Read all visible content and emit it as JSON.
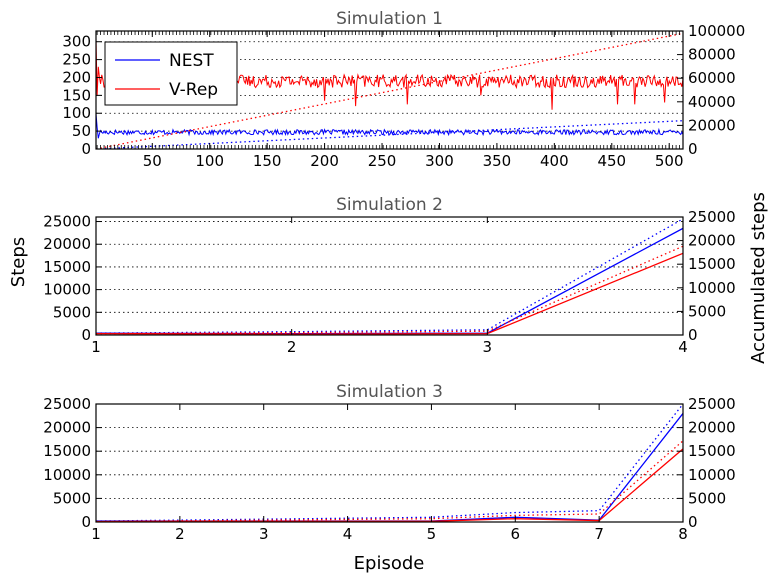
{
  "figure": {
    "ylabel_left": "Steps",
    "ylabel_right": "Accumulated steps",
    "xlabel_bottom": "Episode"
  },
  "colors": {
    "nest": "#0000ff",
    "vrep": "#ff0000"
  },
  "chart_data": [
    {
      "type": "line",
      "title": "Simulation 1",
      "xlim": [
        1,
        512
      ],
      "ylim": [
        0,
        330
      ],
      "ylim_right": [
        0,
        100000
      ],
      "x_ticks": [
        50,
        100,
        150,
        200,
        250,
        300,
        350,
        400,
        450,
        500
      ],
      "y_ticks": [
        0,
        50,
        100,
        150,
        200,
        250,
        300
      ],
      "y_ticks_right": [
        0,
        20000,
        40000,
        60000,
        80000,
        100000
      ],
      "legend": {
        "position": "top-left",
        "entries": [
          "NEST",
          "V-Rep"
        ]
      },
      "series": [
        {
          "name": "NEST",
          "color": "#0000ff",
          "style": "noisy",
          "axis": "left",
          "base": 47,
          "noise": 7,
          "start": [
            100,
            60,
            30
          ]
        },
        {
          "name": "V-Rep",
          "color": "#ff0000",
          "style": "noisy",
          "axis": "left",
          "base": 190,
          "noise": 18,
          "start": [
            310,
            150,
            230,
            200
          ],
          "dips": [
            [
              200,
              135
            ],
            [
              227,
              120
            ],
            [
              272,
              125
            ],
            [
              336,
              150
            ],
            [
              398,
              110
            ],
            [
              455,
              125
            ],
            [
              470,
              125
            ],
            [
              496,
              130
            ]
          ]
        },
        {
          "name": "NEST",
          "color": "#0000ff",
          "style": "dotted",
          "axis": "right",
          "x": [
            1,
            512
          ],
          "y": [
            0,
            24000
          ]
        },
        {
          "name": "V-Rep",
          "color": "#ff0000",
          "style": "dotted",
          "axis": "right",
          "x": [
            1,
            512
          ],
          "y": [
            0,
            98000
          ]
        }
      ]
    },
    {
      "type": "line",
      "title": "Simulation 2",
      "xlim": [
        1,
        4
      ],
      "ylim": [
        0,
        26000
      ],
      "ylim_right": [
        0,
        25000
      ],
      "x_ticks": [
        1,
        2,
        3,
        4
      ],
      "y_ticks": [
        0,
        5000,
        10000,
        15000,
        20000,
        25000
      ],
      "y_ticks_right": [
        0,
        5000,
        10000,
        15000,
        20000,
        25000
      ],
      "series": [
        {
          "name": "NEST",
          "color": "#0000ff",
          "style": "solid",
          "axis": "left",
          "x": [
            1,
            2,
            3,
            4
          ],
          "y": [
            400,
            300,
            400,
            23500
          ]
        },
        {
          "name": "V-Rep",
          "color": "#ff0000",
          "style": "solid",
          "axis": "left",
          "x": [
            1,
            2,
            3,
            4
          ],
          "y": [
            300,
            200,
            300,
            18000
          ]
        },
        {
          "name": "NEST",
          "color": "#0000ff",
          "style": "dotted",
          "axis": "right",
          "x": [
            1,
            2,
            3,
            4
          ],
          "y": [
            400,
            700,
            1100,
            24600
          ]
        },
        {
          "name": "V-Rep",
          "color": "#ff0000",
          "style": "dotted",
          "axis": "right",
          "x": [
            1,
            2,
            3,
            4
          ],
          "y": [
            300,
            500,
            800,
            18800
          ]
        }
      ]
    },
    {
      "type": "line",
      "title": "Simulation 3",
      "xlim": [
        1,
        8
      ],
      "ylim": [
        0,
        25000
      ],
      "ylim_right": [
        0,
        25000
      ],
      "x_ticks": [
        1,
        2,
        3,
        4,
        5,
        6,
        7,
        8
      ],
      "y_ticks": [
        0,
        5000,
        10000,
        15000,
        20000,
        25000
      ],
      "y_ticks_right": [
        0,
        5000,
        10000,
        15000,
        20000,
        25000
      ],
      "series": [
        {
          "name": "NEST",
          "color": "#0000ff",
          "style": "solid",
          "axis": "left",
          "x": [
            1,
            2,
            3,
            4,
            5,
            6,
            7,
            8
          ],
          "y": [
            200,
            200,
            200,
            200,
            200,
            1000,
            400,
            23000
          ]
        },
        {
          "name": "V-Rep",
          "color": "#ff0000",
          "style": "solid",
          "axis": "left",
          "x": [
            1,
            2,
            3,
            4,
            5,
            6,
            7,
            8
          ],
          "y": [
            100,
            150,
            150,
            150,
            150,
            700,
            300,
            15500
          ]
        },
        {
          "name": "NEST",
          "color": "#0000ff",
          "style": "dotted",
          "axis": "right",
          "x": [
            1,
            2,
            3,
            4,
            5,
            6,
            7,
            8
          ],
          "y": [
            200,
            400,
            600,
            800,
            1000,
            2000,
            2400,
            25000
          ]
        },
        {
          "name": "V-Rep",
          "color": "#ff0000",
          "style": "dotted",
          "axis": "right",
          "x": [
            1,
            2,
            3,
            4,
            5,
            6,
            7,
            8
          ],
          "y": [
            100,
            250,
            400,
            550,
            700,
            1400,
            1700,
            17200
          ]
        }
      ]
    }
  ]
}
